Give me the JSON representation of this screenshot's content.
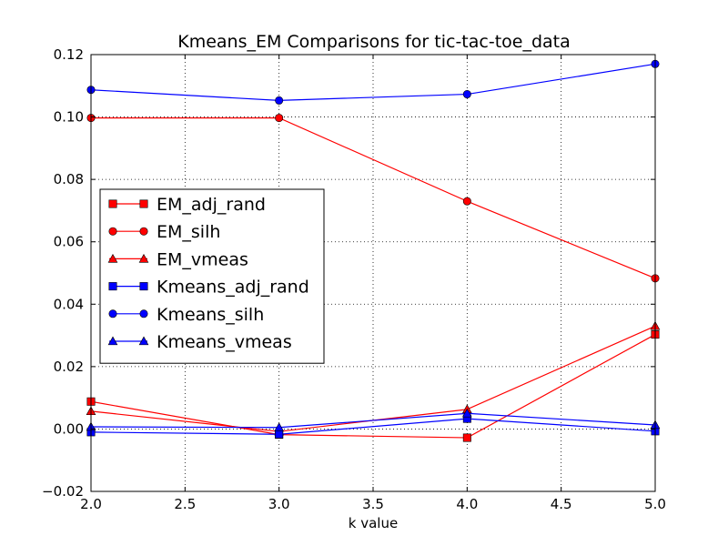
{
  "chart_data": {
    "type": "line",
    "title": "Kmeans_EM Comparisons for tic-tac-toe_data",
    "xlabel": "k value",
    "ylabel": "",
    "xlim": [
      2.0,
      5.0
    ],
    "ylim": [
      -0.02,
      0.12
    ],
    "xticks": [
      "2.0",
      "2.5",
      "3.0",
      "3.5",
      "4.0",
      "4.5",
      "5.0"
    ],
    "yticks": [
      "−0.02",
      "0.00",
      "0.02",
      "0.04",
      "0.06",
      "0.08",
      "0.10",
      "0.12"
    ],
    "grid": true,
    "legend_position": "center-left",
    "x": [
      2.0,
      3.0,
      4.0,
      5.0
    ],
    "series": [
      {
        "name": "EM_adj_rand",
        "color": "#ff0000",
        "marker": "square",
        "values": [
          0.0088,
          -0.0018,
          -0.0028,
          0.0303
        ]
      },
      {
        "name": "EM_silh",
        "color": "#ff0000",
        "marker": "circle",
        "values": [
          0.0997,
          0.0997,
          0.073,
          0.0483
        ]
      },
      {
        "name": "EM_vmeas",
        "color": "#ff0000",
        "marker": "triangle",
        "values": [
          0.0057,
          -0.0008,
          0.0063,
          0.033
        ]
      },
      {
        "name": "Kmeans_adj_rand",
        "color": "#0000ff",
        "marker": "square",
        "values": [
          -0.001,
          -0.0017,
          0.0033,
          -0.0007
        ]
      },
      {
        "name": "Kmeans_silh",
        "color": "#0000ff",
        "marker": "circle",
        "values": [
          0.1087,
          0.1053,
          0.1073,
          0.117
        ]
      },
      {
        "name": "Kmeans_vmeas",
        "color": "#0000ff",
        "marker": "triangle",
        "values": [
          0.0007,
          0.0005,
          0.005,
          0.0013
        ]
      }
    ]
  }
}
